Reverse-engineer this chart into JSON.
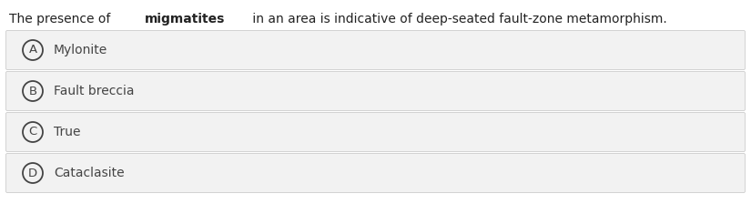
{
  "background_color": "#ffffff",
  "question_text_parts": [
    {
      "text": "The presence of ",
      "bold": false
    },
    {
      "text": "migmatites",
      "bold": true
    },
    {
      "text": " in an area is indicative of deep-seated fault-zone metamorphism.",
      "bold": false
    }
  ],
  "options": [
    {
      "label": "A",
      "text": "Mylonite"
    },
    {
      "label": "B",
      "text": "Fault breccia"
    },
    {
      "label": "C",
      "text": "True"
    },
    {
      "label": "D",
      "text": "Cataclasite"
    }
  ],
  "option_bg_color": "#f2f2f2",
  "option_border_color": "#cccccc",
  "circle_edge_color": "#444444",
  "text_color": "#444444",
  "question_color": "#222222",
  "font_size_question": 10,
  "font_size_options": 10,
  "fig_width": 8.25,
  "fig_height": 2.35
}
